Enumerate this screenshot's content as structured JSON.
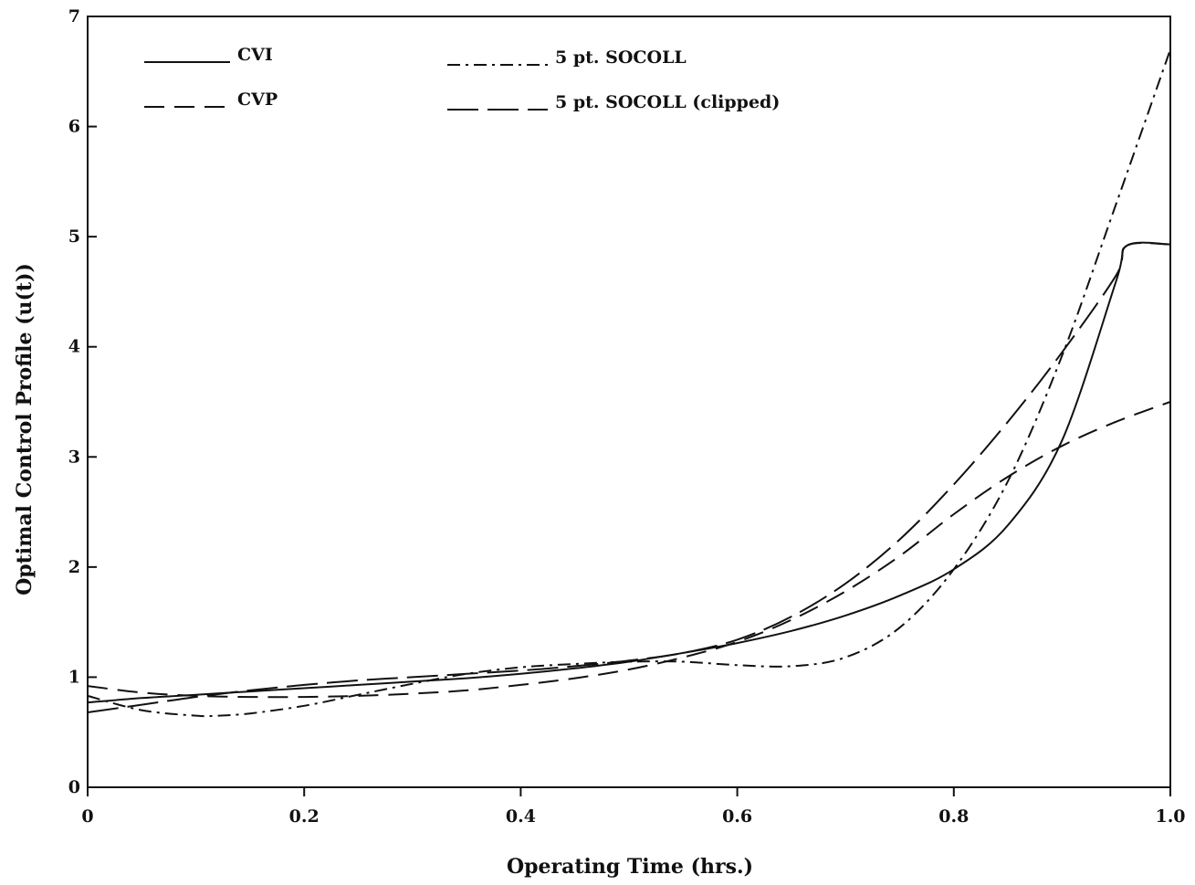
{
  "chart_data": {
    "type": "line",
    "title": "",
    "xlabel": "Operating Time (hrs.)",
    "ylabel": "Optimal Control Profile (u(t))",
    "xlim": [
      0,
      1.0
    ],
    "ylim": [
      0,
      7
    ],
    "xticks": [
      0,
      0.2,
      0.4,
      0.6,
      0.8,
      1.0
    ],
    "xtick_labels": [
      "0",
      "0.2",
      "0.4",
      "0.6",
      "0.8",
      "1.0"
    ],
    "yticks": [
      0,
      1,
      2,
      3,
      4,
      5,
      6,
      7
    ],
    "ytick_labels": [
      "0",
      "1",
      "2",
      "3",
      "4",
      "5",
      "6",
      "7"
    ],
    "grid": false,
    "legend_position": "top-left",
    "series": [
      {
        "name": "CVI",
        "style": "solid",
        "x": [
          0,
          0.05,
          0.1,
          0.15,
          0.2,
          0.25,
          0.3,
          0.35,
          0.4,
          0.45,
          0.5,
          0.55,
          0.6,
          0.65,
          0.7,
          0.75,
          0.8,
          0.85,
          0.9,
          0.95,
          0.96,
          1.0
        ],
        "y": [
          0.77,
          0.81,
          0.84,
          0.87,
          0.9,
          0.93,
          0.96,
          0.99,
          1.03,
          1.08,
          1.14,
          1.22,
          1.31,
          1.42,
          1.56,
          1.74,
          1.98,
          2.38,
          3.15,
          4.6,
          4.92,
          4.93
        ]
      },
      {
        "name": "CVP",
        "style": "dashed",
        "x": [
          0,
          0.05,
          0.1,
          0.15,
          0.2,
          0.25,
          0.3,
          0.35,
          0.4,
          0.45,
          0.5,
          0.55,
          0.6,
          0.65,
          0.7,
          0.75,
          0.8,
          0.85,
          0.9,
          0.95,
          1.0
        ],
        "y": [
          0.92,
          0.86,
          0.83,
          0.82,
          0.82,
          0.83,
          0.85,
          0.88,
          0.93,
          0.99,
          1.07,
          1.18,
          1.32,
          1.52,
          1.78,
          2.1,
          2.48,
          2.82,
          3.1,
          3.32,
          3.5
        ]
      },
      {
        "name": "5 pt. SOCOLL",
        "style": "dash-dot",
        "x": [
          0,
          0.05,
          0.1,
          0.12,
          0.15,
          0.2,
          0.25,
          0.3,
          0.35,
          0.4,
          0.45,
          0.5,
          0.55,
          0.6,
          0.65,
          0.7,
          0.75,
          0.8,
          0.85,
          0.9,
          0.95,
          1.0
        ],
        "y": [
          0.83,
          0.7,
          0.65,
          0.65,
          0.67,
          0.74,
          0.84,
          0.94,
          1.03,
          1.09,
          1.12,
          1.14,
          1.14,
          1.11,
          1.1,
          1.18,
          1.45,
          1.98,
          2.78,
          3.92,
          5.3,
          6.7
        ]
      },
      {
        "name": "5 pt. SOCOLL (clipped)",
        "style": "long-dash",
        "x": [
          0,
          0.05,
          0.1,
          0.15,
          0.2,
          0.25,
          0.3,
          0.35,
          0.4,
          0.45,
          0.5,
          0.55,
          0.6,
          0.65,
          0.7,
          0.75,
          0.8,
          0.85,
          0.9,
          0.95,
          0.96,
          1.0
        ],
        "y": [
          0.68,
          0.75,
          0.82,
          0.88,
          0.93,
          0.97,
          1.0,
          1.03,
          1.06,
          1.1,
          1.15,
          1.22,
          1.34,
          1.55,
          1.85,
          2.25,
          2.75,
          3.32,
          3.95,
          4.65,
          4.92,
          4.93
        ]
      }
    ]
  }
}
